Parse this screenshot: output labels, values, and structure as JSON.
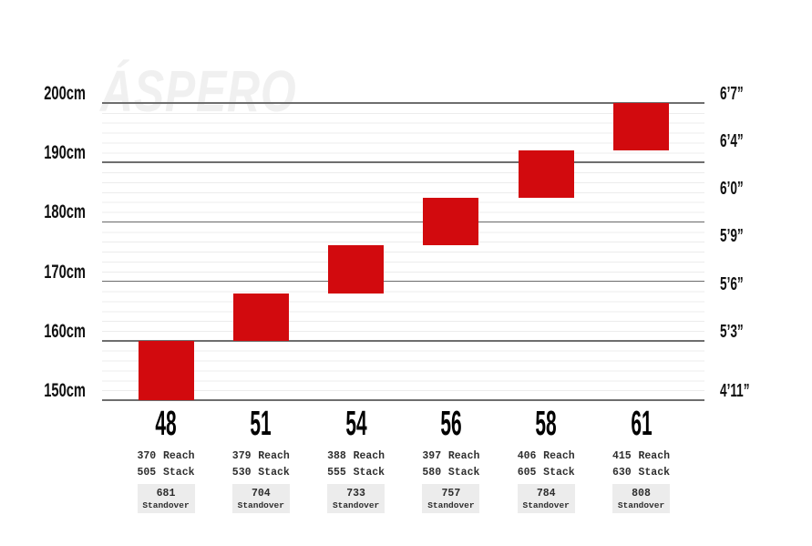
{
  "watermark": "ÁSPERO",
  "colors": {
    "bar_red": "#d20a0e",
    "grid_major": "#6e6e6e",
    "grid_minor": "#ececec",
    "watermark": "#f0f0f0",
    "standover_box_bg": "#ececec",
    "axis_text": "#111111",
    "detail_text": "#2e2e2e"
  },
  "chart_data": {
    "type": "bar",
    "subtype": "floating-range-columns",
    "title": "ÁSPERO",
    "ylabel_left_unit": "cm",
    "ylabel_right_unit": "ft-in",
    "ylim_cm": [
      150,
      200
    ],
    "grid": {
      "gridlines_on": true,
      "major_step_cm": 10,
      "minor_divisions_per_major": 6
    },
    "legend": "none",
    "left_ticks": [
      {
        "label": "200cm",
        "cm": 200
      },
      {
        "label": "190cm",
        "cm": 190
      },
      {
        "label": "180cm",
        "cm": 180
      },
      {
        "label": "170cm",
        "cm": 170
      },
      {
        "label": "160cm",
        "cm": 160
      },
      {
        "label": "150cm",
        "cm": 150
      }
    ],
    "right_ticks": [
      {
        "label": "6’7”",
        "cm": 200
      },
      {
        "label": "6’4”",
        "cm": 192
      },
      {
        "label": "6’0”",
        "cm": 184
      },
      {
        "label": "5’9”",
        "cm": 176
      },
      {
        "label": "5’6”",
        "cm": 168
      },
      {
        "label": "5’3”",
        "cm": 160
      },
      {
        "label": "4’11”",
        "cm": 150
      }
    ],
    "columns": [
      {
        "size": "48",
        "rider_height_cm": [
          150,
          160
        ],
        "reach_mm": 370,
        "stack_mm": 505,
        "standover_mm": 681
      },
      {
        "size": "51",
        "rider_height_cm": [
          160,
          168
        ],
        "reach_mm": 379,
        "stack_mm": 530,
        "standover_mm": 704
      },
      {
        "size": "54",
        "rider_height_cm": [
          168,
          176
        ],
        "reach_mm": 388,
        "stack_mm": 555,
        "standover_mm": 733
      },
      {
        "size": "56",
        "rider_height_cm": [
          176,
          184
        ],
        "reach_mm": 397,
        "stack_mm": 580,
        "standover_mm": 757
      },
      {
        "size": "58",
        "rider_height_cm": [
          184,
          192
        ],
        "reach_mm": 406,
        "stack_mm": 605,
        "standover_mm": 784
      },
      {
        "size": "61",
        "rider_height_cm": [
          192,
          200
        ],
        "reach_mm": 415,
        "stack_mm": 630,
        "standover_mm": 808
      }
    ],
    "labels": {
      "reach": "Reach",
      "stack": "Stack",
      "standover": "Standover"
    }
  }
}
